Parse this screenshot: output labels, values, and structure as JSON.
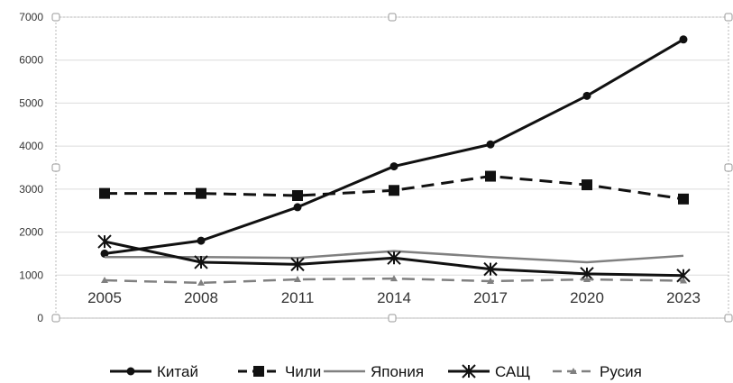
{
  "chart_data": {
    "type": "line",
    "title": "",
    "xlabel": "",
    "ylabel": "",
    "categories": [
      "2005",
      "2008",
      "2011",
      "2014",
      "2017",
      "2020",
      "2023"
    ],
    "ylim": [
      0,
      7000
    ],
    "yticks": [
      0,
      1000,
      2000,
      3000,
      4000,
      5000,
      6000,
      7000
    ],
    "grid": true,
    "legend_position": "bottom",
    "series": [
      {
        "name": "Китай",
        "values": [
          1500,
          1800,
          2580,
          3530,
          4040,
          5170,
          6480
        ],
        "color": "#111111",
        "line": "solid",
        "marker": "circle"
      },
      {
        "name": "Чили",
        "values": [
          2900,
          2900,
          2850,
          2970,
          3300,
          3100,
          2770
        ],
        "color": "#111111",
        "line": "dashed",
        "marker": "square"
      },
      {
        "name": "Япония",
        "values": [
          1420,
          1420,
          1400,
          1560,
          1420,
          1300,
          1450
        ],
        "color": "#808080",
        "line": "solid",
        "marker": "none"
      },
      {
        "name": "САЩ",
        "values": [
          1780,
          1300,
          1250,
          1400,
          1140,
          1030,
          990
        ],
        "color": "#111111",
        "line": "solid",
        "marker": "star"
      },
      {
        "name": "Русия",
        "values": [
          880,
          820,
          900,
          920,
          860,
          900,
          870
        ],
        "color": "#808080",
        "line": "dashed",
        "marker": "triangle"
      }
    ]
  }
}
